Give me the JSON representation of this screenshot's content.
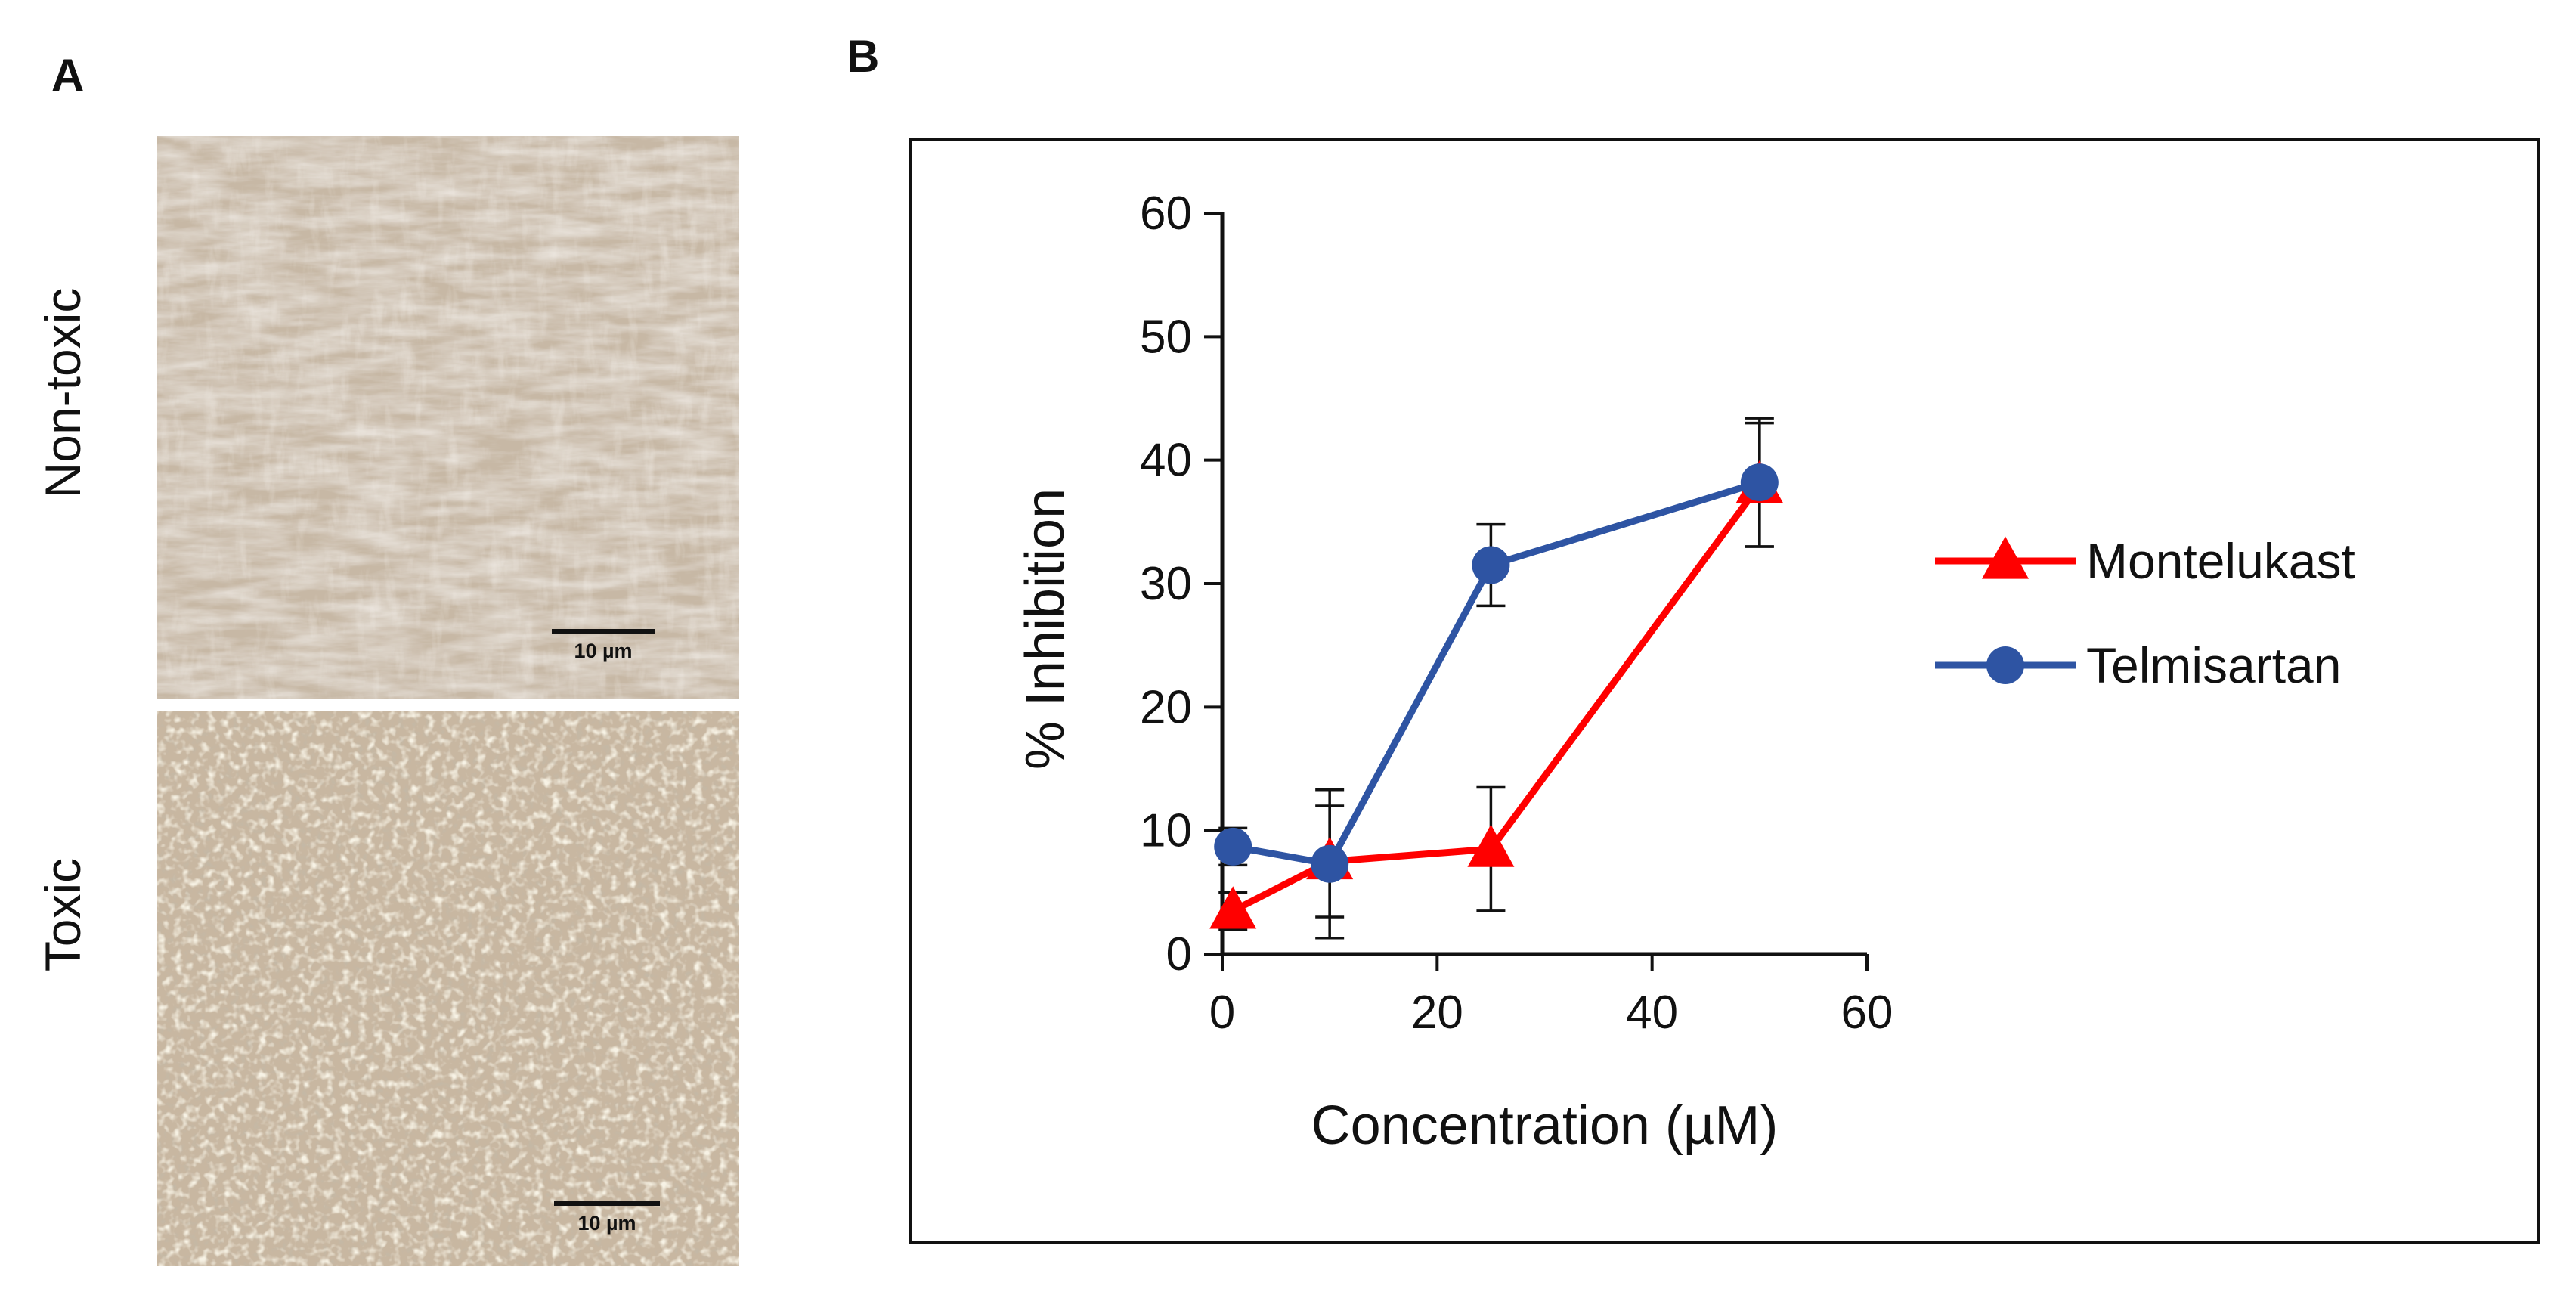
{
  "panels": {
    "a_label": "A",
    "b_label": "B",
    "top_label": "Non-toxic",
    "bottom_label": "Toxic",
    "scalebar_top": "10 µm",
    "scalebar_bottom": "10 µm"
  },
  "colors": {
    "montelukast": "#ff0000",
    "telmisartan": "#2e54a3",
    "micro_top_bg": "#cdbfae",
    "micro_bottom_bg": "#c8b7a1"
  },
  "chart_data": {
    "type": "line",
    "title": "",
    "xlabel": "Concentration (µM)",
    "ylabel": "% Inhibition",
    "xlim": [
      0,
      60
    ],
    "ylim": [
      0,
      60
    ],
    "xticks": [
      0,
      20,
      40,
      60
    ],
    "yticks": [
      0,
      10,
      20,
      30,
      40,
      50,
      60
    ],
    "x_tick_labels": [
      "0",
      "20",
      "40",
      "60"
    ],
    "y_tick_labels": [
      "0",
      "10",
      "20",
      "30",
      "40",
      "50",
      "60"
    ],
    "legend_position": "right",
    "series": [
      {
        "name": "Montelukast",
        "marker": "triangle",
        "x": [
          1,
          10,
          25,
          50
        ],
        "y": [
          3.5,
          7.5,
          8.5,
          38
        ],
        "err": [
          1.5,
          4.5,
          5,
          5
        ]
      },
      {
        "name": "Telmisartan",
        "marker": "circle",
        "x": [
          1,
          10,
          25,
          50
        ],
        "y": [
          8.7,
          7.3,
          31.5,
          38.2
        ],
        "err": [
          1.5,
          6,
          3.3,
          5.2
        ]
      }
    ]
  }
}
